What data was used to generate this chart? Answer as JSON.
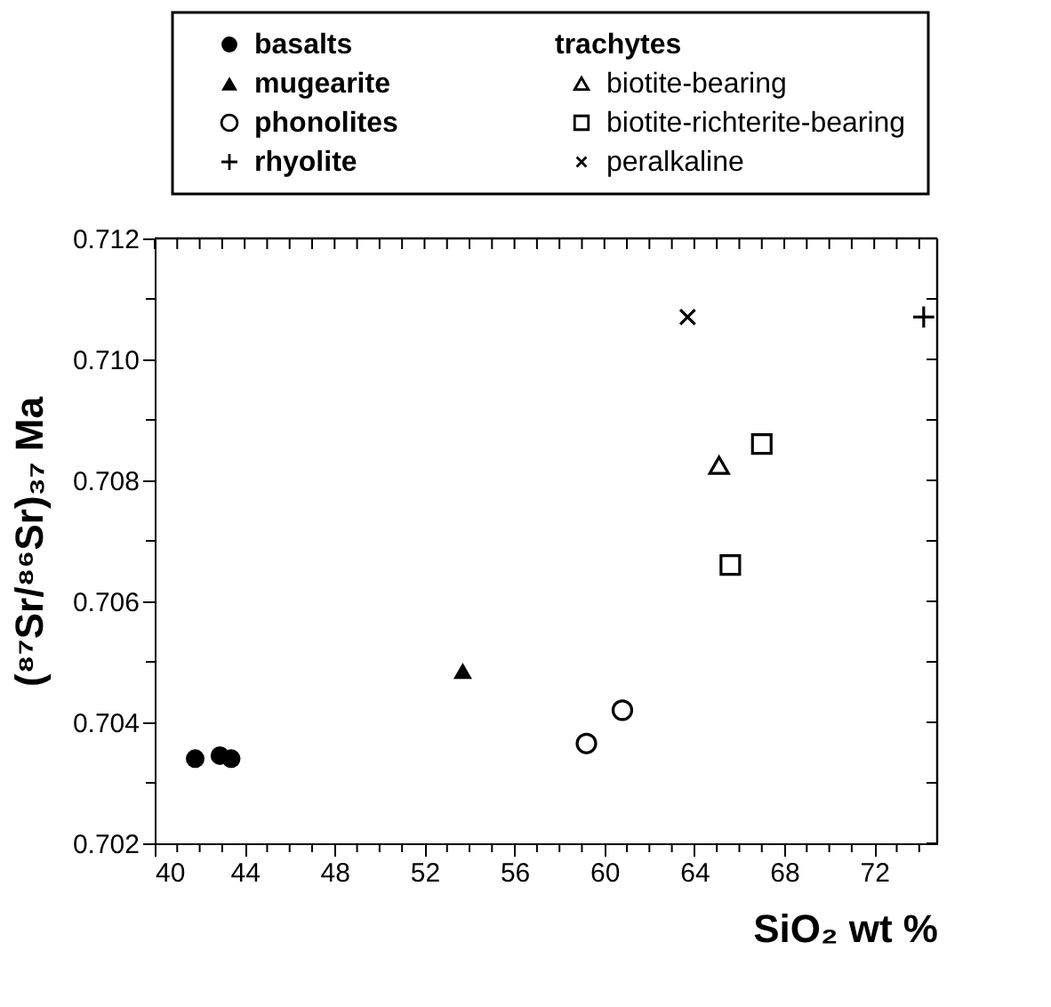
{
  "chart_data": {
    "type": "scatter",
    "xlabel": "SiO₂  wt %",
    "ylabel": "(⁸⁷Sr/⁸⁶Sr)₃₇ Ma",
    "xlim": [
      40,
      74.8
    ],
    "ylim": [
      0.702,
      0.712
    ],
    "xticks": [
      40,
      {
        "value": 41,
        "label": null
      },
      {
        "value": 42,
        "label": null
      },
      {
        "value": 43,
        "label": null
      },
      44,
      {
        "value": 45,
        "label": null
      },
      {
        "value": 46,
        "label": null
      },
      {
        "value": 47,
        "label": null
      },
      48,
      {
        "value": 49,
        "label": null
      },
      {
        "value": 50,
        "label": null
      },
      {
        "value": 51,
        "label": null
      },
      52,
      {
        "value": 53,
        "label": null
      },
      {
        "value": 54,
        "label": null
      },
      {
        "value": 55,
        "label": null
      },
      56,
      {
        "value": 57,
        "label": null
      },
      {
        "value": 58,
        "label": null
      },
      {
        "value": 59,
        "label": null
      },
      60,
      {
        "value": 61,
        "label": null
      },
      {
        "value": 62,
        "label": null
      },
      {
        "value": 63,
        "label": null
      },
      64,
      {
        "value": 65,
        "label": null
      },
      {
        "value": 66,
        "label": null
      },
      {
        "value": 67,
        "label": null
      },
      68,
      {
        "value": 69,
        "label": null
      },
      {
        "value": 70,
        "label": null
      },
      {
        "value": 71,
        "label": null
      },
      72,
      {
        "value": 73,
        "label": null
      },
      {
        "value": 74,
        "label": null
      }
    ],
    "yticks": [
      0.702,
      {
        "value": 0.703,
        "label": null
      },
      0.704,
      {
        "value": 0.705,
        "label": null
      },
      0.706,
      {
        "value": 0.707,
        "label": null
      },
      0.708,
      {
        "value": 0.709,
        "label": null
      },
      {
        "value": 0.71,
        "label": "0.710"
      },
      {
        "value": 0.711,
        "label": null
      },
      0.712
    ],
    "grid": false,
    "legend": "top",
    "annotations": [
      "trachytes"
    ],
    "series": [
      {
        "name": "basalts",
        "color": "#000000",
        "marker": "circle",
        "x": [
          41.8,
          42.9,
          43.4
        ],
        "values": [
          0.7034,
          0.70345,
          0.7034
        ]
      },
      {
        "name": "mugearite",
        "color": "#000000",
        "marker": "triangle",
        "x": [
          53.7
        ],
        "values": [
          0.70485
        ]
      },
      {
        "name": "phonolites",
        "color": "#000000",
        "marker": "circle-open",
        "x": [
          59.2,
          60.8
        ],
        "values": [
          0.70365,
          0.7042
        ]
      },
      {
        "name": "rhyolite",
        "color": "#000000",
        "marker": "cross",
        "x": [
          74.2
        ],
        "values": [
          0.7107
        ]
      },
      {
        "name": "biotite-bearing",
        "color": "#000000",
        "marker": "triangle-open",
        "x": [
          65.1
        ],
        "values": [
          0.70825
        ]
      },
      {
        "name": "biotite-richterite-bearing",
        "color": "#000000",
        "marker": "square-open",
        "x": [
          65.6,
          67.0
        ],
        "values": [
          0.7066,
          0.7086
        ]
      },
      {
        "name": "peralkaline",
        "color": "#000000",
        "marker": "x",
        "x": [
          63.7
        ],
        "values": [
          0.7107
        ]
      }
    ]
  }
}
